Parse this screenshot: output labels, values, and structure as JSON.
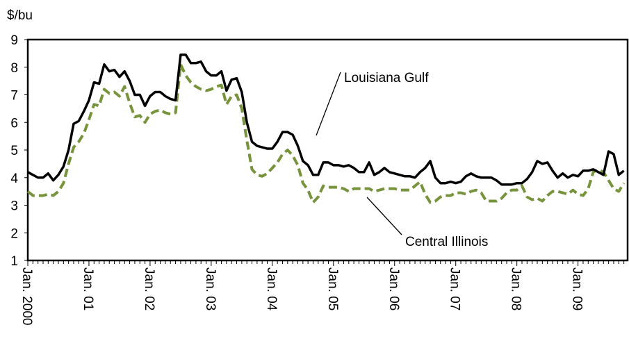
{
  "chart_data": {
    "type": "line",
    "y_label": "$/bu",
    "categories": [
      "Jan. 2000",
      null,
      null,
      null,
      null,
      null,
      null,
      null,
      null,
      null,
      null,
      null,
      "Jan. 01",
      null,
      null,
      null,
      null,
      null,
      null,
      null,
      null,
      null,
      null,
      null,
      "Jan. 02",
      null,
      null,
      null,
      null,
      null,
      null,
      null,
      null,
      null,
      null,
      null,
      "Jan. 03",
      null,
      null,
      null,
      null,
      null,
      null,
      null,
      null,
      null,
      null,
      null,
      "Jan. 04",
      null,
      null,
      null,
      null,
      null,
      null,
      null,
      null,
      null,
      null,
      null,
      "Jan. 05",
      null,
      null,
      null,
      null,
      null,
      null,
      null,
      null,
      null,
      null,
      null,
      "Jan. 06",
      null,
      null,
      null,
      null,
      null,
      null,
      null,
      null,
      null,
      null,
      null,
      "Jan. 07",
      null,
      null,
      null,
      null,
      null,
      null,
      null,
      null,
      null,
      null,
      null,
      "Jan. 08",
      null,
      null,
      null,
      null,
      null,
      null,
      null,
      null,
      null,
      null,
      null,
      "Jan. 09",
      null,
      null,
      null,
      null,
      null,
      null,
      null,
      null,
      null
    ],
    "series": [
      {
        "name": "Louisiana Gulf",
        "color": "#000000",
        "dash": false,
        "values": [
          4.2,
          4.1,
          4.0,
          4.0,
          4.15,
          3.9,
          4.1,
          4.4,
          5.0,
          5.95,
          6.05,
          6.4,
          6.8,
          7.45,
          7.4,
          8.1,
          7.85,
          7.9,
          7.65,
          7.85,
          7.5,
          7.0,
          7.0,
          6.6,
          6.95,
          7.1,
          7.1,
          6.95,
          6.85,
          6.8,
          8.45,
          8.45,
          8.15,
          8.15,
          8.2,
          7.85,
          7.7,
          7.7,
          7.85,
          7.15,
          7.55,
          7.6,
          7.1,
          6.0,
          5.3,
          5.15,
          5.1,
          5.05,
          5.05,
          5.3,
          5.65,
          5.65,
          5.55,
          5.15,
          4.6,
          4.45,
          4.1,
          4.1,
          4.55,
          4.55,
          4.45,
          4.45,
          4.4,
          4.45,
          4.35,
          4.2,
          4.2,
          4.55,
          4.1,
          4.2,
          4.35,
          4.2,
          4.15,
          4.1,
          4.05,
          4.05,
          4.0,
          4.2,
          4.35,
          4.6,
          4.0,
          3.8,
          3.8,
          3.85,
          3.8,
          3.85,
          4.05,
          4.15,
          4.05,
          4.0,
          4.0,
          4.0,
          3.9,
          3.75,
          3.75,
          3.75,
          3.8,
          3.8,
          3.95,
          4.2,
          4.6,
          4.5,
          4.55,
          4.25,
          4.0,
          4.15,
          4.0,
          4.1,
          4.05,
          4.25,
          4.25,
          4.3,
          4.2,
          4.1,
          4.95,
          4.85,
          4.1,
          4.25
        ]
      },
      {
        "name": "Central Illinois",
        "color": "#77933c",
        "dash": true,
        "values": [
          3.5,
          3.35,
          3.35,
          3.35,
          3.4,
          3.35,
          3.5,
          3.8,
          4.5,
          5.1,
          5.3,
          5.6,
          6.1,
          6.65,
          6.6,
          7.2,
          7.05,
          7.1,
          6.95,
          7.3,
          6.7,
          6.2,
          6.25,
          6.0,
          6.3,
          6.4,
          6.45,
          6.35,
          6.3,
          6.35,
          8.1,
          7.7,
          7.45,
          7.3,
          7.2,
          7.15,
          7.2,
          7.3,
          7.35,
          6.65,
          6.95,
          7.0,
          6.5,
          5.35,
          4.3,
          4.1,
          4.05,
          4.15,
          4.35,
          4.55,
          4.85,
          5.0,
          4.8,
          4.45,
          3.8,
          3.55,
          3.1,
          3.3,
          3.7,
          3.65,
          3.65,
          3.65,
          3.6,
          3.5,
          3.6,
          3.6,
          3.6,
          3.6,
          3.5,
          3.55,
          3.6,
          3.6,
          3.6,
          3.55,
          3.55,
          3.55,
          3.7,
          3.85,
          3.4,
          3.1,
          3.15,
          3.3,
          3.35,
          3.35,
          3.45,
          3.45,
          3.4,
          3.5,
          3.55,
          3.45,
          3.15,
          3.15,
          3.15,
          3.25,
          3.45,
          3.55,
          3.55,
          3.7,
          3.3,
          3.2,
          3.25,
          3.15,
          3.35,
          3.5,
          3.5,
          3.45,
          3.4,
          3.55,
          3.4,
          3.35,
          3.6,
          4.2,
          4.3,
          4.2,
          3.9,
          3.6,
          3.5,
          3.8
        ]
      }
    ],
    "ylim": [
      1,
      9
    ],
    "yticks": [
      1,
      2,
      3,
      4,
      5,
      6,
      7,
      8,
      9
    ],
    "grid": false
  }
}
